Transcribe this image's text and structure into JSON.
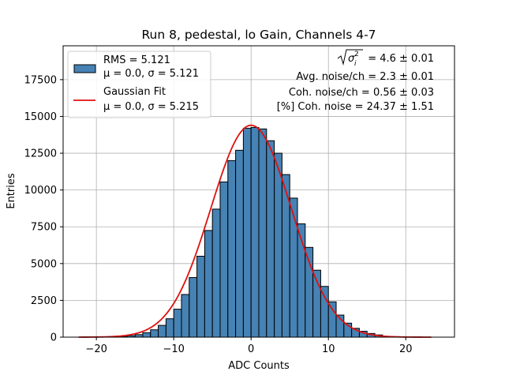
{
  "chart_data": {
    "type": "bar",
    "title": "Run 8, pedestal, lo Gain, Channels 4-7",
    "xlabel": "ADC Counts",
    "ylabel": "Entries",
    "xlim": [
      -24.3,
      26.3
    ],
    "ylim": [
      0,
      19800
    ],
    "grid": true,
    "x_ticks": [
      -20,
      -10,
      0,
      10,
      20
    ],
    "x_tick_labels": [
      "−20",
      "−10",
      "0",
      "10",
      "20"
    ],
    "y_ticks": [
      0,
      2500,
      5000,
      7500,
      10000,
      12500,
      15000,
      17500
    ],
    "y_tick_labels": [
      "0",
      "2500",
      "5000",
      "7500",
      "10000",
      "12500",
      "15000",
      "17500"
    ],
    "bin_width": 1,
    "bin_edges_start": -17,
    "values": [
      40,
      100,
      170,
      300,
      500,
      800,
      1250,
      1900,
      2900,
      4050,
      5500,
      7250,
      8700,
      10550,
      12000,
      12700,
      14200,
      14250,
      14150,
      13350,
      12500,
      11050,
      9450,
      7700,
      6100,
      4550,
      3450,
      2400,
      1500,
      950,
      600,
      400,
      250,
      150
    ],
    "histogram_color": "#4682b4",
    "edge_color": "#000000",
    "fit": {
      "mu": 0.0,
      "sigma": 5.215,
      "amplitude": 14400,
      "x_range": [
        -22.3,
        23.3
      ],
      "color": "#dd1111"
    },
    "legend": {
      "position": "upper left",
      "entries": [
        {
          "label_line1": "RMS = 5.121",
          "label_line2_prefix": "μ = 0.0, σ = 5.121",
          "type": "patch"
        },
        {
          "label_line1": "Gaussian Fit",
          "label_line2_prefix": "μ = 0.0, σ = 5.215",
          "type": "line"
        }
      ]
    },
    "annotations": {
      "line1_value": "= 4.6 ± 0.01",
      "line2": "Avg. noise/ch = 2.3 ± 0.01",
      "line3": "Coh. noise/ch = 0.56 ± 0.03",
      "line4": "[%] Coh. noise = 24.37 ± 1.51"
    }
  }
}
